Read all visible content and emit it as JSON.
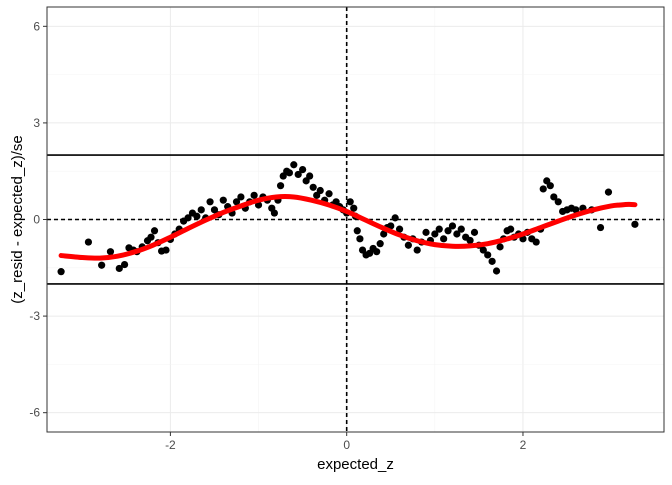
{
  "chart_data": {
    "type": "scatter",
    "title": "",
    "xlabel": "expected_z",
    "ylabel": "(z_resid - expected_z)/se",
    "xlim": [
      -3.4,
      3.6
    ],
    "ylim": [
      -6.6,
      6.6
    ],
    "x_ticks": [
      -2,
      0,
      2
    ],
    "y_ticks": [
      -6,
      -3,
      0,
      3,
      6
    ],
    "x_tick_labels": [
      "-2",
      "0",
      "2"
    ],
    "y_tick_labels": [
      "-6",
      "-3",
      "0",
      "3",
      "6"
    ],
    "grid": true,
    "legend": "none",
    "reference_lines": [
      {
        "axis": "y",
        "value": 2,
        "style": "solid"
      },
      {
        "axis": "y",
        "value": -2,
        "style": "solid"
      },
      {
        "axis": "y",
        "value": 0,
        "style": "dashed"
      },
      {
        "axis": "x",
        "value": 0,
        "style": "dashed"
      }
    ],
    "series": [
      {
        "kind": "points",
        "color": "#000000",
        "points": [
          [
            -3.24,
            -1.62
          ],
          [
            -2.93,
            -0.7
          ],
          [
            -2.78,
            -1.42
          ],
          [
            -2.68,
            -1.0
          ],
          [
            -2.58,
            -1.52
          ],
          [
            -2.52,
            -1.4
          ],
          [
            -2.47,
            -0.88
          ],
          [
            -2.42,
            -0.95
          ],
          [
            -2.38,
            -1.0
          ],
          [
            -2.32,
            -0.85
          ],
          [
            -2.26,
            -0.66
          ],
          [
            -2.22,
            -0.55
          ],
          [
            -2.18,
            -0.35
          ],
          [
            -2.14,
            -0.72
          ],
          [
            -2.1,
            -0.98
          ],
          [
            -2.05,
            -0.95
          ],
          [
            -2.0,
            -0.62
          ],
          [
            -1.95,
            -0.45
          ],
          [
            -1.9,
            -0.3
          ],
          [
            -1.85,
            -0.05
          ],
          [
            -1.8,
            0.05
          ],
          [
            -1.75,
            0.2
          ],
          [
            -1.7,
            0.1
          ],
          [
            -1.65,
            0.3
          ],
          [
            -1.6,
            0.05
          ],
          [
            -1.55,
            0.55
          ],
          [
            -1.5,
            0.3
          ],
          [
            -1.45,
            0.15
          ],
          [
            -1.4,
            0.6
          ],
          [
            -1.35,
            0.4
          ],
          [
            -1.3,
            0.2
          ],
          [
            -1.25,
            0.55
          ],
          [
            -1.2,
            0.7
          ],
          [
            -1.15,
            0.35
          ],
          [
            -1.1,
            0.55
          ],
          [
            -1.05,
            0.75
          ],
          [
            -1.0,
            0.45
          ],
          [
            -0.95,
            0.7
          ],
          [
            -0.9,
            0.6
          ],
          [
            -0.85,
            0.35
          ],
          [
            -0.82,
            0.2
          ],
          [
            -0.78,
            0.6
          ],
          [
            -0.75,
            1.05
          ],
          [
            -0.72,
            1.35
          ],
          [
            -0.68,
            1.5
          ],
          [
            -0.65,
            1.45
          ],
          [
            -0.6,
            1.7
          ],
          [
            -0.55,
            1.4
          ],
          [
            -0.5,
            1.55
          ],
          [
            -0.46,
            1.2
          ],
          [
            -0.42,
            1.35
          ],
          [
            -0.38,
            1.0
          ],
          [
            -0.34,
            0.75
          ],
          [
            -0.3,
            0.9
          ],
          [
            -0.25,
            0.6
          ],
          [
            -0.2,
            0.8
          ],
          [
            -0.16,
            0.45
          ],
          [
            -0.12,
            0.55
          ],
          [
            -0.08,
            0.4
          ],
          [
            -0.04,
            0.3
          ],
          [
            0.0,
            0.2
          ],
          [
            0.04,
            0.55
          ],
          [
            0.08,
            0.35
          ],
          [
            0.1,
            0.1
          ],
          [
            0.12,
            -0.35
          ],
          [
            0.15,
            -0.6
          ],
          [
            0.18,
            -0.95
          ],
          [
            0.22,
            -1.1
          ],
          [
            0.26,
            -1.05
          ],
          [
            0.3,
            -0.9
          ],
          [
            0.34,
            -1.0
          ],
          [
            0.38,
            -0.75
          ],
          [
            0.42,
            -0.45
          ],
          [
            0.46,
            -0.25
          ],
          [
            0.5,
            -0.2
          ],
          [
            0.55,
            0.05
          ],
          [
            0.6,
            -0.3
          ],
          [
            0.65,
            -0.55
          ],
          [
            0.7,
            -0.8
          ],
          [
            0.75,
            -0.6
          ],
          [
            0.8,
            -0.95
          ],
          [
            0.85,
            -0.7
          ],
          [
            0.9,
            -0.4
          ],
          [
            0.95,
            -0.65
          ],
          [
            1.0,
            -0.45
          ],
          [
            1.05,
            -0.3
          ],
          [
            1.1,
            -0.6
          ],
          [
            1.15,
            -0.35
          ],
          [
            1.2,
            -0.2
          ],
          [
            1.25,
            -0.45
          ],
          [
            1.3,
            -0.3
          ],
          [
            1.35,
            -0.55
          ],
          [
            1.4,
            -0.65
          ],
          [
            1.45,
            -0.4
          ],
          [
            1.5,
            -0.8
          ],
          [
            1.55,
            -0.95
          ],
          [
            1.6,
            -1.1
          ],
          [
            1.65,
            -1.3
          ],
          [
            1.7,
            -1.6
          ],
          [
            1.74,
            -0.85
          ],
          [
            1.78,
            -0.6
          ],
          [
            1.82,
            -0.35
          ],
          [
            1.86,
            -0.3
          ],
          [
            1.9,
            -0.55
          ],
          [
            1.95,
            -0.45
          ],
          [
            2.0,
            -0.6
          ],
          [
            2.05,
            -0.4
          ],
          [
            2.1,
            -0.6
          ],
          [
            2.15,
            -0.7
          ],
          [
            2.2,
            -0.3
          ],
          [
            2.23,
            0.95
          ],
          [
            2.27,
            1.2
          ],
          [
            2.31,
            1.05
          ],
          [
            2.35,
            0.7
          ],
          [
            2.4,
            0.55
          ],
          [
            2.45,
            0.25
          ],
          [
            2.5,
            0.3
          ],
          [
            2.55,
            0.35
          ],
          [
            2.6,
            0.3
          ],
          [
            2.68,
            0.35
          ],
          [
            2.78,
            0.3
          ],
          [
            2.88,
            -0.25
          ],
          [
            2.97,
            0.85
          ],
          [
            3.27,
            -0.15
          ]
        ]
      },
      {
        "kind": "smooth",
        "color": "#ff0000",
        "points": [
          [
            -3.24,
            -1.12
          ],
          [
            -3.0,
            -1.18
          ],
          [
            -2.8,
            -1.2
          ],
          [
            -2.6,
            -1.14
          ],
          [
            -2.4,
            -1.0
          ],
          [
            -2.2,
            -0.8
          ],
          [
            -2.0,
            -0.55
          ],
          [
            -1.8,
            -0.28
          ],
          [
            -1.6,
            -0.02
          ],
          [
            -1.4,
            0.22
          ],
          [
            -1.2,
            0.42
          ],
          [
            -1.0,
            0.6
          ],
          [
            -0.8,
            0.7
          ],
          [
            -0.6,
            0.7
          ],
          [
            -0.4,
            0.6
          ],
          [
            -0.2,
            0.45
          ],
          [
            0.0,
            0.25
          ],
          [
            0.2,
            0.0
          ],
          [
            0.4,
            -0.25
          ],
          [
            0.6,
            -0.48
          ],
          [
            0.8,
            -0.66
          ],
          [
            1.0,
            -0.78
          ],
          [
            1.2,
            -0.83
          ],
          [
            1.4,
            -0.82
          ],
          [
            1.6,
            -0.75
          ],
          [
            1.8,
            -0.62
          ],
          [
            2.0,
            -0.45
          ],
          [
            2.2,
            -0.25
          ],
          [
            2.4,
            -0.05
          ],
          [
            2.6,
            0.14
          ],
          [
            2.8,
            0.3
          ],
          [
            3.0,
            0.42
          ],
          [
            3.1,
            0.45
          ],
          [
            3.2,
            0.47
          ],
          [
            3.27,
            0.46
          ]
        ]
      }
    ]
  }
}
